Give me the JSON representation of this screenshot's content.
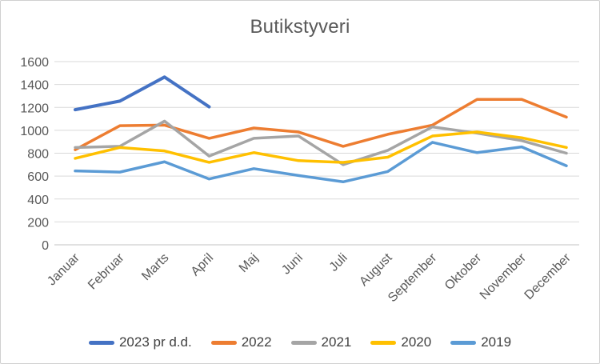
{
  "theme": {
    "background": "#ffffff",
    "border": "#d0d0d0",
    "gridline": "#d9d9d9",
    "axis_line": "#c3c3c3",
    "title_text": "#595959",
    "tick_text": "#595959",
    "legend_text": "#3f3f3f"
  },
  "chart_data": {
    "type": "line",
    "title": "Butikstyveri",
    "xlabel": "",
    "ylabel": "",
    "ylim": [
      0,
      1600
    ],
    "yticks": [
      0,
      200,
      400,
      600,
      800,
      1000,
      1200,
      1400,
      1600
    ],
    "grid": "horizontal",
    "legend_position": "bottom",
    "categories": [
      "Januar",
      "Februar",
      "Marts",
      "April",
      "Maj",
      "Juni",
      "Juli",
      "August",
      "September",
      "Oktober",
      "November",
      "December"
    ],
    "series": [
      {
        "name": "2023 pr d.d.",
        "color": "#4472C4",
        "values": [
          1180,
          1255,
          1465,
          1205
        ]
      },
      {
        "name": "2022",
        "color": "#ED7D31",
        "values": [
          830,
          1040,
          1045,
          930,
          1020,
          985,
          860,
          965,
          1045,
          1270,
          1270,
          1115
        ]
      },
      {
        "name": "2021",
        "color": "#A5A5A5",
        "values": [
          850,
          860,
          1080,
          775,
          930,
          950,
          700,
          825,
          1030,
          975,
          910,
          800
        ]
      },
      {
        "name": "2020",
        "color": "#FFC000",
        "values": [
          755,
          850,
          820,
          720,
          805,
          735,
          720,
          765,
          950,
          985,
          935,
          850
        ]
      },
      {
        "name": "2019",
        "color": "#5B9BD5",
        "values": [
          645,
          635,
          725,
          575,
          665,
          605,
          550,
          640,
          895,
          805,
          855,
          690
        ]
      }
    ]
  }
}
